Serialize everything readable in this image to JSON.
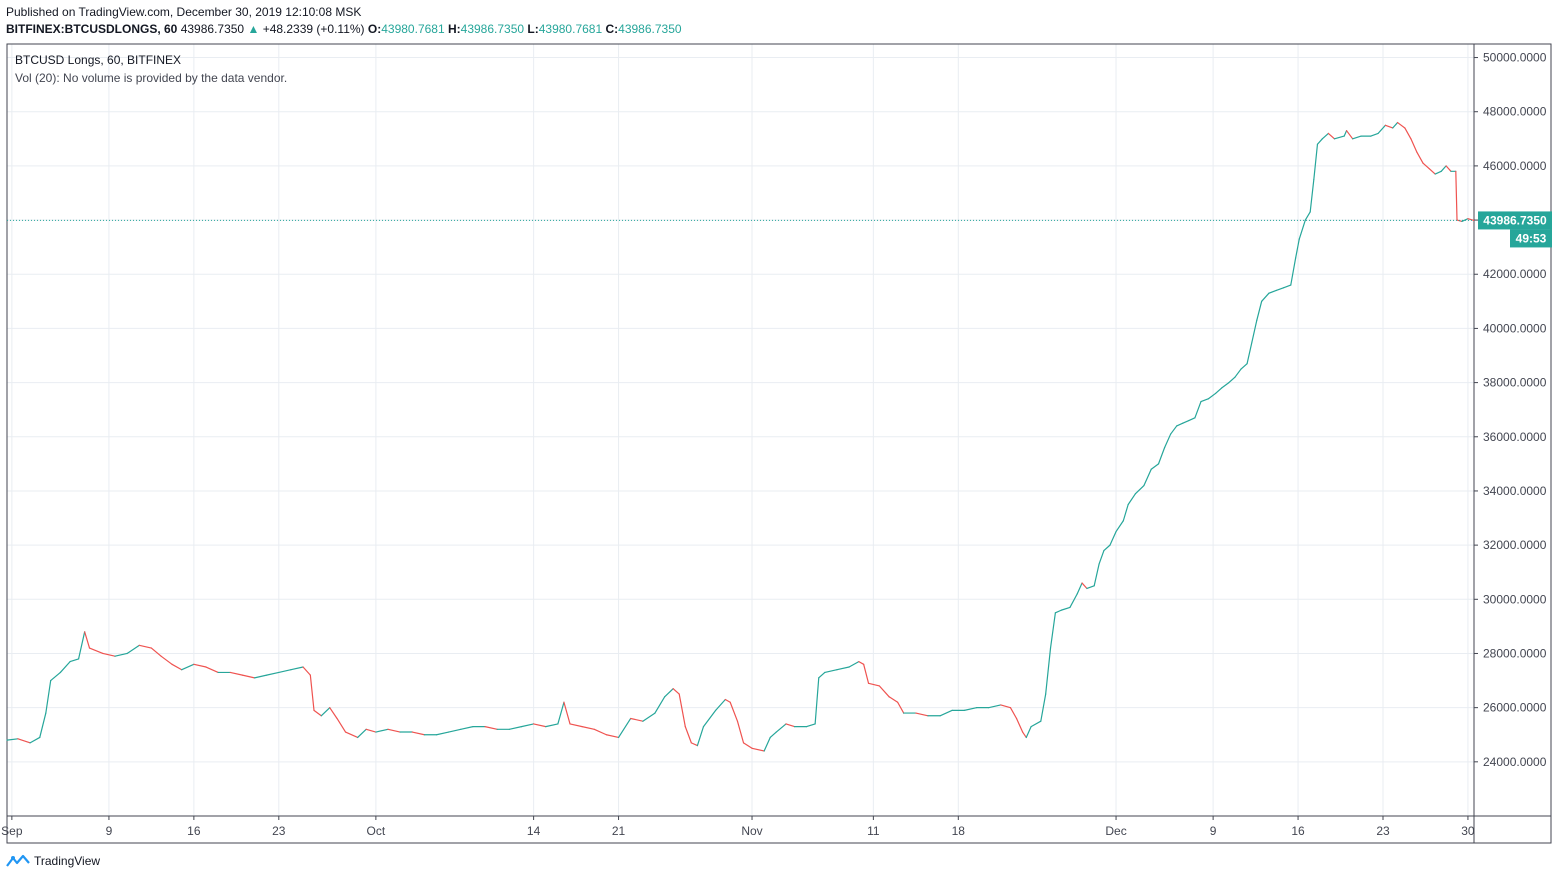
{
  "header": {
    "published": "Published on TradingView.com, December 30, 2019 12:10:08 MSK",
    "symbol": "BITFINEX:BTCUSDLONGS, 60",
    "last": "43986.7350",
    "change": "+48.2339 (+0.11%)",
    "o_label": "O:",
    "o_value": "43980.7681",
    "h_label": "H:",
    "h_value": "43986.7350",
    "l_label": "L:",
    "l_value": "43980.7681",
    "c_label": "C:",
    "c_value": "43986.7350"
  },
  "legend": {
    "series": "BTCUSD Longs, 60, BITFINEX",
    "volume": "Vol (20): No volume is provided by the data vendor."
  },
  "price_tag": {
    "value": "43986.7350",
    "countdown": "49:53"
  },
  "footer": {
    "brand": "TradingView"
  },
  "colors": {
    "up": "#26a69a",
    "down": "#ef5350",
    "grid": "#e9edf2",
    "axis": "#434651"
  },
  "chart_data": {
    "type": "line",
    "title": "BTCUSD Longs, 60, BITFINEX",
    "ylim": [
      22000,
      50500
    ],
    "yticks": [
      24000,
      26000,
      28000,
      30000,
      32000,
      34000,
      36000,
      38000,
      40000,
      42000,
      44000,
      46000,
      48000,
      50000
    ],
    "ytick_labels": [
      "24000.0000",
      "26000.0000",
      "28000.0000",
      "30000.0000",
      "32000.0000",
      "34000.0000",
      "36000.0000",
      "38000.0000",
      "40000.0000",
      "42000.0000",
      "44000.0000",
      "46000.0000",
      "48000.0000",
      "50000.0000"
    ],
    "xlim": [
      243.6,
      364.5
    ],
    "xtick_labels": [
      {
        "day": 244,
        "label": "Sep"
      },
      {
        "day": 252,
        "label": "9"
      },
      {
        "day": 259,
        "label": "16"
      },
      {
        "day": 266,
        "label": "23"
      },
      {
        "day": 274,
        "label": "Oct"
      },
      {
        "day": 287,
        "label": "14"
      },
      {
        "day": 294,
        "label": "21"
      },
      {
        "day": 305,
        "label": "Nov"
      },
      {
        "day": 315,
        "label": "11"
      },
      {
        "day": 322,
        "label": "18"
      },
      {
        "day": 335,
        "label": "Dec"
      },
      {
        "day": 343,
        "label": "9"
      },
      {
        "day": 350,
        "label": "16"
      },
      {
        "day": 357,
        "label": "23"
      },
      {
        "day": 364,
        "label": "30"
      }
    ],
    "series": [
      {
        "values": [
          [
            243.6,
            24800
          ],
          [
            244.5,
            24850
          ],
          [
            245.5,
            24700
          ],
          [
            246.3,
            24900
          ],
          [
            246.8,
            25800
          ],
          [
            247.2,
            27000
          ],
          [
            248.0,
            27300
          ],
          [
            248.8,
            27700
          ],
          [
            249.5,
            27800
          ],
          [
            250.0,
            28800
          ],
          [
            250.4,
            28200
          ],
          [
            251.5,
            28000
          ],
          [
            252.5,
            27900
          ],
          [
            253.5,
            28000
          ],
          [
            254.5,
            28300
          ],
          [
            255.5,
            28200
          ],
          [
            256.3,
            27900
          ],
          [
            257.2,
            27600
          ],
          [
            258.0,
            27400
          ],
          [
            259.0,
            27600
          ],
          [
            260.0,
            27500
          ],
          [
            261.0,
            27300
          ],
          [
            262.0,
            27300
          ],
          [
            263.0,
            27200
          ],
          [
            264.0,
            27100
          ],
          [
            265.0,
            27200
          ],
          [
            266.0,
            27300
          ],
          [
            267.0,
            27400
          ],
          [
            268.0,
            27500
          ],
          [
            268.6,
            27200
          ],
          [
            268.9,
            25900
          ],
          [
            269.5,
            25700
          ],
          [
            270.2,
            26000
          ],
          [
            270.8,
            25600
          ],
          [
            271.5,
            25100
          ],
          [
            272.5,
            24900
          ],
          [
            273.2,
            25200
          ],
          [
            274.0,
            25100
          ],
          [
            275.0,
            25200
          ],
          [
            276.0,
            25100
          ],
          [
            277.0,
            25100
          ],
          [
            278.0,
            25000
          ],
          [
            279.0,
            25000
          ],
          [
            280.0,
            25100
          ],
          [
            281.0,
            25200
          ],
          [
            282.0,
            25300
          ],
          [
            283.0,
            25300
          ],
          [
            284.0,
            25200
          ],
          [
            285.0,
            25200
          ],
          [
            286.0,
            25300
          ],
          [
            287.0,
            25400
          ],
          [
            288.0,
            25300
          ],
          [
            289.0,
            25400
          ],
          [
            289.5,
            26200
          ],
          [
            290.0,
            25400
          ],
          [
            291.0,
            25300
          ],
          [
            292.0,
            25200
          ],
          [
            293.0,
            25000
          ],
          [
            294.0,
            24900
          ],
          [
            295.0,
            25600
          ],
          [
            296.0,
            25500
          ],
          [
            297.0,
            25800
          ],
          [
            297.8,
            26400
          ],
          [
            298.5,
            26700
          ],
          [
            299.0,
            26500
          ],
          [
            299.5,
            25300
          ],
          [
            300.0,
            24700
          ],
          [
            300.5,
            24600
          ],
          [
            301.0,
            25300
          ],
          [
            302.0,
            25900
          ],
          [
            302.8,
            26300
          ],
          [
            303.2,
            26200
          ],
          [
            303.8,
            25500
          ],
          [
            304.3,
            24700
          ],
          [
            305.0,
            24500
          ],
          [
            306.0,
            24400
          ],
          [
            306.5,
            24900
          ],
          [
            307.0,
            25100
          ],
          [
            307.8,
            25400
          ],
          [
            308.5,
            25300
          ],
          [
            309.5,
            25300
          ],
          [
            310.2,
            25400
          ],
          [
            310.5,
            27100
          ],
          [
            311.0,
            27300
          ],
          [
            312.0,
            27400
          ],
          [
            313.0,
            27500
          ],
          [
            313.8,
            27700
          ],
          [
            314.2,
            27600
          ],
          [
            314.6,
            26900
          ],
          [
            315.5,
            26800
          ],
          [
            316.3,
            26400
          ],
          [
            317.0,
            26200
          ],
          [
            317.5,
            25800
          ],
          [
            318.5,
            25800
          ],
          [
            319.5,
            25700
          ],
          [
            320.5,
            25700
          ],
          [
            321.5,
            25900
          ],
          [
            322.5,
            25900
          ],
          [
            323.5,
            26000
          ],
          [
            324.5,
            26000
          ],
          [
            325.5,
            26100
          ],
          [
            326.3,
            26000
          ],
          [
            326.8,
            25600
          ],
          [
            327.3,
            25100
          ],
          [
            327.6,
            24900
          ],
          [
            328.0,
            25300
          ],
          [
            328.8,
            25500
          ],
          [
            329.2,
            26500
          ],
          [
            329.6,
            28200
          ],
          [
            330.0,
            29500
          ],
          [
            330.5,
            29600
          ],
          [
            331.2,
            29700
          ],
          [
            331.8,
            30200
          ],
          [
            332.2,
            30600
          ],
          [
            332.6,
            30400
          ],
          [
            333.2,
            30500
          ],
          [
            333.6,
            31300
          ],
          [
            334.0,
            31800
          ],
          [
            334.5,
            32000
          ],
          [
            335.0,
            32500
          ],
          [
            335.6,
            32900
          ],
          [
            336.0,
            33500
          ],
          [
            336.6,
            33900
          ],
          [
            337.3,
            34200
          ],
          [
            337.9,
            34800
          ],
          [
            338.5,
            35000
          ],
          [
            339.0,
            35600
          ],
          [
            339.5,
            36100
          ],
          [
            340.0,
            36400
          ],
          [
            340.5,
            36500
          ],
          [
            341.0,
            36600
          ],
          [
            341.5,
            36700
          ],
          [
            342.0,
            37300
          ],
          [
            342.6,
            37400
          ],
          [
            343.2,
            37600
          ],
          [
            343.7,
            37800
          ],
          [
            344.3,
            38000
          ],
          [
            344.8,
            38200
          ],
          [
            345.3,
            38500
          ],
          [
            345.8,
            38700
          ],
          [
            346.2,
            39500
          ],
          [
            346.6,
            40300
          ],
          [
            347.0,
            41000
          ],
          [
            347.6,
            41300
          ],
          [
            348.2,
            41400
          ],
          [
            348.8,
            41500
          ],
          [
            349.4,
            41600
          ],
          [
            349.8,
            42600
          ],
          [
            350.1,
            43300
          ],
          [
            350.6,
            44000
          ],
          [
            351.0,
            44300
          ],
          [
            351.3,
            45500
          ],
          [
            351.6,
            46800
          ],
          [
            352.0,
            47000
          ],
          [
            352.5,
            47200
          ],
          [
            353.0,
            47000
          ],
          [
            353.8,
            47100
          ],
          [
            354.0,
            47300
          ],
          [
            354.5,
            47000
          ],
          [
            355.2,
            47100
          ],
          [
            356.0,
            47100
          ],
          [
            356.6,
            47200
          ],
          [
            357.2,
            47500
          ],
          [
            357.8,
            47400
          ],
          [
            358.2,
            47600
          ],
          [
            358.8,
            47400
          ],
          [
            359.3,
            47000
          ],
          [
            359.8,
            46500
          ],
          [
            360.3,
            46100
          ],
          [
            360.8,
            45900
          ],
          [
            361.3,
            45700
          ],
          [
            361.8,
            45800
          ],
          [
            362.2,
            46000
          ],
          [
            362.6,
            45800
          ],
          [
            363.0,
            45800
          ],
          [
            363.1,
            44000
          ],
          [
            363.5,
            43950
          ],
          [
            364.0,
            44050
          ],
          [
            364.5,
            43986.735
          ]
        ]
      }
    ]
  }
}
